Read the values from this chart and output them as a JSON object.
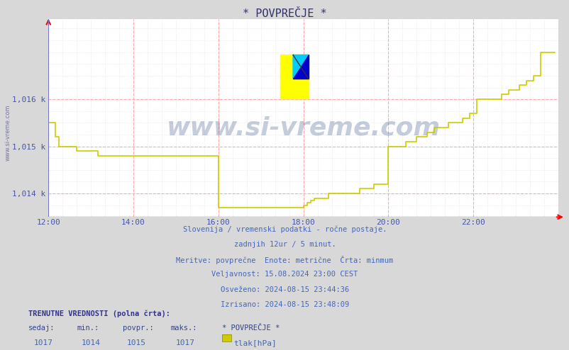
{
  "title": "* POVPREČJE *",
  "bg_color": "#d8d8d8",
  "plot_bg_color": "#ffffff",
  "line_color": "#cccc00",
  "grid_color_major": "#ffaaaa",
  "grid_color_minor": "#e0e0e0",
  "ymin": 1013.5,
  "ymax": 1017.7,
  "xmin": 0,
  "xmax": 144,
  "x_tick_labels": [
    "12:00",
    "14:00",
    "16:00",
    "18:00",
    "20:00",
    "22:00"
  ],
  "x_tick_positions": [
    0,
    24,
    48,
    72,
    96,
    120
  ],
  "y_tick_labels": [
    "1,014 k",
    "1,015 k",
    "1,016 k"
  ],
  "y_tick_values": [
    1014,
    1015,
    1016
  ],
  "subtitle_lines": [
    "Slovenija / vremenski podatki - ročne postaje.",
    "zadnjih 12ur / 5 minut.",
    "Meritve: povprečne  Enote: metrične  Črta: minmum",
    "Veljavnost: 15.08.2024 23:00 CEST",
    "Osveženo: 2024-08-15 23:44:36",
    "Izrisano: 2024-08-15 23:48:09"
  ],
  "bottom_label1": "TRENUTNE VREDNOSTI (polna črta):",
  "bottom_cols": [
    "sedaj:",
    "min.:",
    "povpr.:",
    "maks.:",
    "* POVPREČJE *"
  ],
  "bottom_vals": [
    "1017",
    "1014",
    "1015",
    "1017"
  ],
  "bottom_unit": "tlak[hPa]",
  "watermark": "www.si-vreme.com",
  "data_x": [
    0,
    1,
    2,
    3,
    4,
    5,
    6,
    7,
    8,
    9,
    10,
    11,
    12,
    13,
    14,
    15,
    16,
    17,
    18,
    19,
    20,
    21,
    22,
    23,
    24,
    25,
    26,
    27,
    28,
    29,
    30,
    31,
    32,
    33,
    34,
    35,
    36,
    37,
    38,
    39,
    40,
    41,
    42,
    43,
    44,
    45,
    46,
    47,
    48,
    49,
    50,
    51,
    52,
    53,
    54,
    55,
    56,
    57,
    58,
    59,
    60,
    61,
    62,
    63,
    64,
    65,
    66,
    67,
    68,
    69,
    70,
    71,
    72,
    73,
    74,
    75,
    76,
    77,
    78,
    79,
    80,
    81,
    82,
    83,
    84,
    85,
    86,
    87,
    88,
    89,
    90,
    91,
    92,
    93,
    94,
    95,
    96,
    97,
    98,
    99,
    100,
    101,
    102,
    103,
    104,
    105,
    106,
    107,
    108,
    109,
    110,
    111,
    112,
    113,
    114,
    115,
    116,
    117,
    118,
    119,
    120,
    121,
    122,
    123,
    124,
    125,
    126,
    127,
    128,
    129,
    130,
    131,
    132,
    133,
    134,
    135,
    136,
    137,
    138,
    139,
    140,
    141,
    142,
    143
  ],
  "data_y": [
    1015.5,
    1015.5,
    1015.2,
    1015.0,
    1015.0,
    1015.0,
    1015.0,
    1015.0,
    1014.9,
    1014.9,
    1014.9,
    1014.9,
    1014.9,
    1014.9,
    1014.8,
    1014.8,
    1014.8,
    1014.8,
    1014.8,
    1014.8,
    1014.8,
    1014.8,
    1014.8,
    1014.8,
    1014.8,
    1014.8,
    1014.8,
    1014.8,
    1014.8,
    1014.8,
    1014.8,
    1014.8,
    1014.8,
    1014.8,
    1014.8,
    1014.8,
    1014.8,
    1014.8,
    1014.8,
    1014.8,
    1014.8,
    1014.8,
    1014.8,
    1014.8,
    1014.8,
    1014.8,
    1014.8,
    1014.8,
    1013.7,
    1013.7,
    1013.7,
    1013.7,
    1013.7,
    1013.7,
    1013.7,
    1013.7,
    1013.7,
    1013.7,
    1013.7,
    1013.7,
    1013.7,
    1013.7,
    1013.7,
    1013.7,
    1013.7,
    1013.7,
    1013.7,
    1013.7,
    1013.7,
    1013.7,
    1013.7,
    1013.7,
    1013.75,
    1013.8,
    1013.85,
    1013.9,
    1013.9,
    1013.9,
    1013.9,
    1014.0,
    1014.0,
    1014.0,
    1014.0,
    1014.0,
    1014.0,
    1014.0,
    1014.0,
    1014.0,
    1014.1,
    1014.1,
    1014.1,
    1014.1,
    1014.2,
    1014.2,
    1014.2,
    1014.2,
    1015.0,
    1015.0,
    1015.0,
    1015.0,
    1015.0,
    1015.1,
    1015.1,
    1015.1,
    1015.2,
    1015.2,
    1015.2,
    1015.3,
    1015.3,
    1015.4,
    1015.4,
    1015.4,
    1015.4,
    1015.5,
    1015.5,
    1015.5,
    1015.5,
    1015.6,
    1015.6,
    1015.7,
    1015.7,
    1016.0,
    1016.0,
    1016.0,
    1016.0,
    1016.0,
    1016.0,
    1016.0,
    1016.1,
    1016.1,
    1016.2,
    1016.2,
    1016.2,
    1016.3,
    1016.3,
    1016.4,
    1016.4,
    1016.5,
    1016.5,
    1017.0,
    1017.0,
    1017.0,
    1017.0,
    1017.0
  ]
}
